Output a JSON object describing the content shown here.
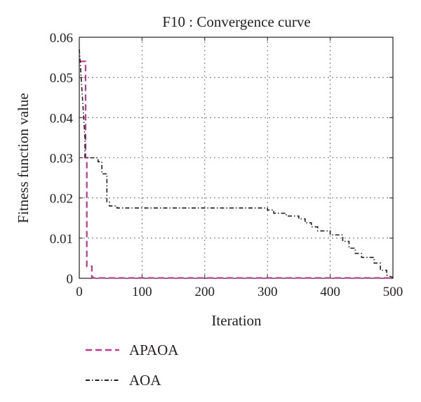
{
  "chart_data": {
    "type": "line",
    "title": "F10 : Convergence curve",
    "xlabel": "Iteration",
    "ylabel": "Fitness function value",
    "xlim": [
      0,
      500
    ],
    "ylim": [
      0,
      0.06
    ],
    "xticks": [
      "0",
      "100",
      "200",
      "300",
      "400",
      "500"
    ],
    "yticks": [
      "0",
      "0.01",
      "0.02",
      "0.03",
      "0.04",
      "0.05",
      "0.06"
    ],
    "grid": true,
    "legend_position": "below",
    "series": [
      {
        "name": "APAOA",
        "color": "#c2378f",
        "style": "dashed",
        "x": [
          0,
          2,
          2,
          10,
          10,
          12,
          12,
          20,
          20,
          22,
          22,
          500
        ],
        "y": [
          0.054,
          0.054,
          0.054,
          0.054,
          0.03,
          0.03,
          0.003,
          0.003,
          0.0003,
          0.0003,
          0.0001,
          0.0001
        ]
      },
      {
        "name": "AOA",
        "color": "#231f20",
        "style": "dashdot",
        "x": [
          0,
          1,
          3,
          5,
          7,
          9,
          9,
          30,
          30,
          36,
          36,
          44,
          44,
          48,
          48,
          60,
          60,
          300,
          300,
          310,
          310,
          330,
          330,
          350,
          350,
          360,
          360,
          370,
          370,
          380,
          380,
          400,
          400,
          420,
          420,
          430,
          430,
          440,
          440,
          450,
          450,
          470,
          470,
          480,
          480,
          490,
          490,
          500
        ],
        "y": [
          0.057,
          0.055,
          0.05,
          0.045,
          0.04,
          0.035,
          0.03,
          0.03,
          0.029,
          0.029,
          0.026,
          0.026,
          0.019,
          0.019,
          0.018,
          0.018,
          0.0175,
          0.0175,
          0.017,
          0.017,
          0.0162,
          0.0162,
          0.0155,
          0.0155,
          0.0148,
          0.0148,
          0.0138,
          0.0138,
          0.0128,
          0.0128,
          0.0118,
          0.0118,
          0.0108,
          0.0108,
          0.0092,
          0.0092,
          0.0075,
          0.0075,
          0.0062,
          0.0062,
          0.0052,
          0.0052,
          0.0038,
          0.0038,
          0.002,
          0.002,
          0.0008,
          0.0002
        ]
      }
    ]
  }
}
